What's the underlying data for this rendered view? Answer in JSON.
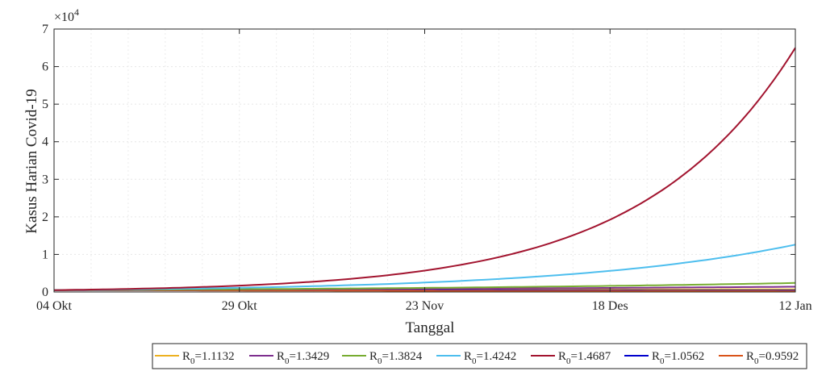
{
  "chart_data": {
    "type": "line",
    "xlabel": "Tanggal",
    "ylabel": "Kasus Harian Covid-19",
    "exponent_label": "×10",
    "exponent_power": "4",
    "x_start": "2020-10-04",
    "x_end": "2021-01-12",
    "xlim": [
      "2020-10-04",
      "2021-01-12"
    ],
    "ylim": [
      0,
      7
    ],
    "y_ticks": [
      0,
      1,
      2,
      3,
      4,
      5,
      6,
      7
    ],
    "x_ticks": [
      {
        "date": "2020-10-04",
        "label": "04 Okt"
      },
      {
        "date": "2020-10-29",
        "label": "29 Okt"
      },
      {
        "date": "2020-11-23",
        "label": "23 Nov"
      },
      {
        "date": "2020-12-18",
        "label": "18 Des"
      },
      {
        "date": "2021-01-12",
        "label": "12 Jan"
      }
    ],
    "grid": true,
    "legend_position": "bottom-right",
    "series": [
      {
        "name": "R0=1.1132",
        "r0": "1.1132",
        "color": "#EDB120",
        "start": 0.05,
        "end": 0.07
      },
      {
        "name": "R0=1.3429",
        "r0": "1.3429",
        "color": "#7E2F8E",
        "start": 0.05,
        "end": 0.14
      },
      {
        "name": "R0=1.3824",
        "r0": "1.3824",
        "color": "#77AC30",
        "start": 0.05,
        "end": 0.24
      },
      {
        "name": "R0=1.4242",
        "r0": "1.4242",
        "color": "#4DBEEE",
        "start": 0.05,
        "end": 1.26
      },
      {
        "name": "R0=1.4687",
        "r0": "1.4687",
        "color": "#A2142F",
        "start": 0.05,
        "end": 6.5
      },
      {
        "name": "R0=1.0562",
        "r0": "1.0562",
        "color": "#0000CD",
        "start": 0.05,
        "end": 0.04
      },
      {
        "name": "R0=0.9592",
        "r0": "0.9592",
        "color": "#D95319",
        "start": 0.05,
        "end": 0.02
      }
    ]
  }
}
